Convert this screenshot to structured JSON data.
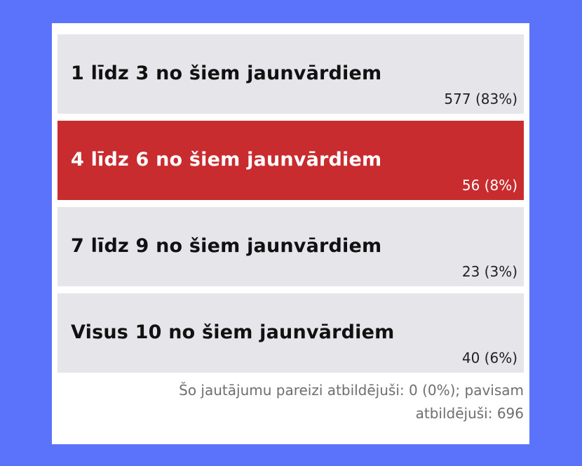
{
  "poll": {
    "options": [
      {
        "label": "1 līdz 3 no šiem jaunvārdiem",
        "result": "577 (83%)",
        "selected": false
      },
      {
        "label": "4 līdz 6 no šiem jaunvārdiem",
        "result": "56 (8%)",
        "selected": true
      },
      {
        "label": "7 līdz 9 no šiem jaunvārdiem",
        "result": "23 (3%)",
        "selected": false
      },
      {
        "label": "Visus 10 no šiem jaunvārdiem",
        "result": "40 (6%)",
        "selected": false
      }
    ],
    "summary_line1": "Šo jautājumu pareizi atbildējuši: 0 (0%); pavisam",
    "summary_line2": "atbildējuši: 696"
  },
  "colors": {
    "background": "#5b72fb",
    "option_default": "#e6e6ea",
    "option_selected": "#c92c2f"
  }
}
